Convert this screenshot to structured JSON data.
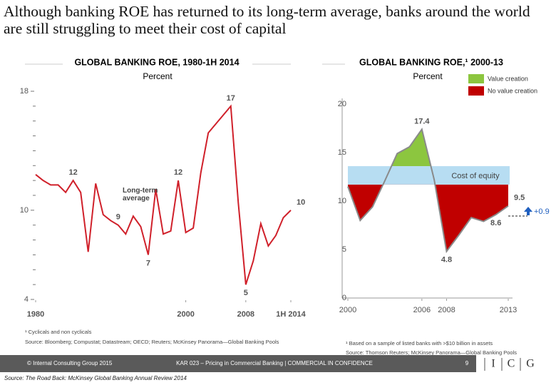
{
  "header": {
    "title": "Although banking ROE has returned to its long-term average, banks around the world are still struggling to meet their cost of capital"
  },
  "chart_data": [
    {
      "type": "line",
      "title": "GLOBAL BANKING ROE, 1980-1H 2014",
      "subtitle": "Percent",
      "color": "#d0202a",
      "x": [
        1980,
        1981,
        1982,
        1983,
        1984,
        1985,
        1986,
        1987,
        1988,
        1989,
        1990,
        1991,
        1992,
        1993,
        1994,
        1995,
        1996,
        1997,
        1998,
        1999,
        2000,
        2001,
        2002,
        2003,
        2004,
        2005,
        2006,
        2007,
        2008,
        2009,
        2010,
        2011,
        2012,
        2013,
        2014
      ],
      "values": [
        12.4,
        12.0,
        11.7,
        11.7,
        11.2,
        12,
        11.2,
        7.2,
        11.8,
        9.7,
        9.3,
        9,
        8.4,
        9.6,
        8.9,
        7,
        11.4,
        8.4,
        8.6,
        12,
        8.5,
        8.8,
        12.5,
        15.2,
        15.8,
        16.4,
        17,
        10.5,
        5,
        6.6,
        9.1,
        7.6,
        8.3,
        9.5,
        10
      ],
      "value_labels": [
        null,
        null,
        null,
        null,
        null,
        "12",
        null,
        null,
        null,
        null,
        null,
        "9",
        null,
        null,
        null,
        "7",
        null,
        null,
        null,
        "12",
        null,
        null,
        null,
        null,
        null,
        null,
        "17",
        null,
        "5",
        null,
        null,
        null,
        null,
        null,
        "10"
      ],
      "xlim": [
        1980,
        2014
      ],
      "xticks": [
        1980,
        2000,
        2008,
        {
          "value": 2014,
          "label": "1H 2014"
        }
      ],
      "ylim": [
        4,
        18
      ],
      "yticks": [
        4,
        10,
        18
      ],
      "minor_yticks": [
        5,
        6,
        7,
        8,
        9,
        11,
        12,
        13,
        14,
        15,
        16,
        17
      ],
      "annotations": [
        "Long-term average"
      ],
      "footnotes": [
        "¹ Cyclicals and non cyclicals",
        "Source: Bloomberg; Compustat; Datastream; OECD; Reuters; McKinsey Panorama—Global Banking Pools"
      ]
    },
    {
      "type": "line",
      "title": "GLOBAL BANKING ROE,¹ 2000-13",
      "subtitle": "Percent",
      "color": "#8a8a8a",
      "x": [
        2000,
        2001,
        2002,
        2003,
        2004,
        2005,
        2006,
        2007,
        2008,
        2009,
        2010,
        2011,
        2012,
        2013
      ],
      "values": [
        11.5,
        8.0,
        9.4,
        12.1,
        14.9,
        15.6,
        17.4,
        12.2,
        4.8,
        6.5,
        8.3,
        7.9,
        8.6,
        9.5
      ],
      "value_labels": [
        null,
        null,
        null,
        null,
        null,
        null,
        "17.4",
        null,
        "4.8",
        null,
        null,
        null,
        "8.6",
        "9.5"
      ],
      "xlim": [
        2000,
        2013
      ],
      "xticks": [
        2000,
        2006,
        2008,
        2013
      ],
      "ylim": [
        0,
        20
      ],
      "yticks": [
        0,
        5,
        10,
        15,
        20
      ],
      "band": {
        "label": "Cost of equity",
        "range": [
          11.7,
          13.6
        ],
        "color": "#b7ddf2"
      },
      "legend": [
        {
          "name": "Value creation",
          "color": "#8cc63f"
        },
        {
          "name": "No value creation",
          "color": "#c00000"
        }
      ],
      "annotations": [
        "+0.9"
      ],
      "footnotes": [
        "¹ Based on a sample of listed banks with >$10 billion in assets",
        "Source: Thomson Reuters; McKinsey Panorama—Global Banking Pools"
      ]
    }
  ],
  "footer": {
    "copyright": "© Internal Consulting Group 2015",
    "center": "KAR 023 – Pricing in Commercial Banking | COMMERCIAL IN CONFIDENCE",
    "page": "9",
    "logo": [
      "I",
      "C",
      "G"
    ],
    "source": "Source: The Road Back: McKinsey Global Banking Annual Review 2014"
  }
}
